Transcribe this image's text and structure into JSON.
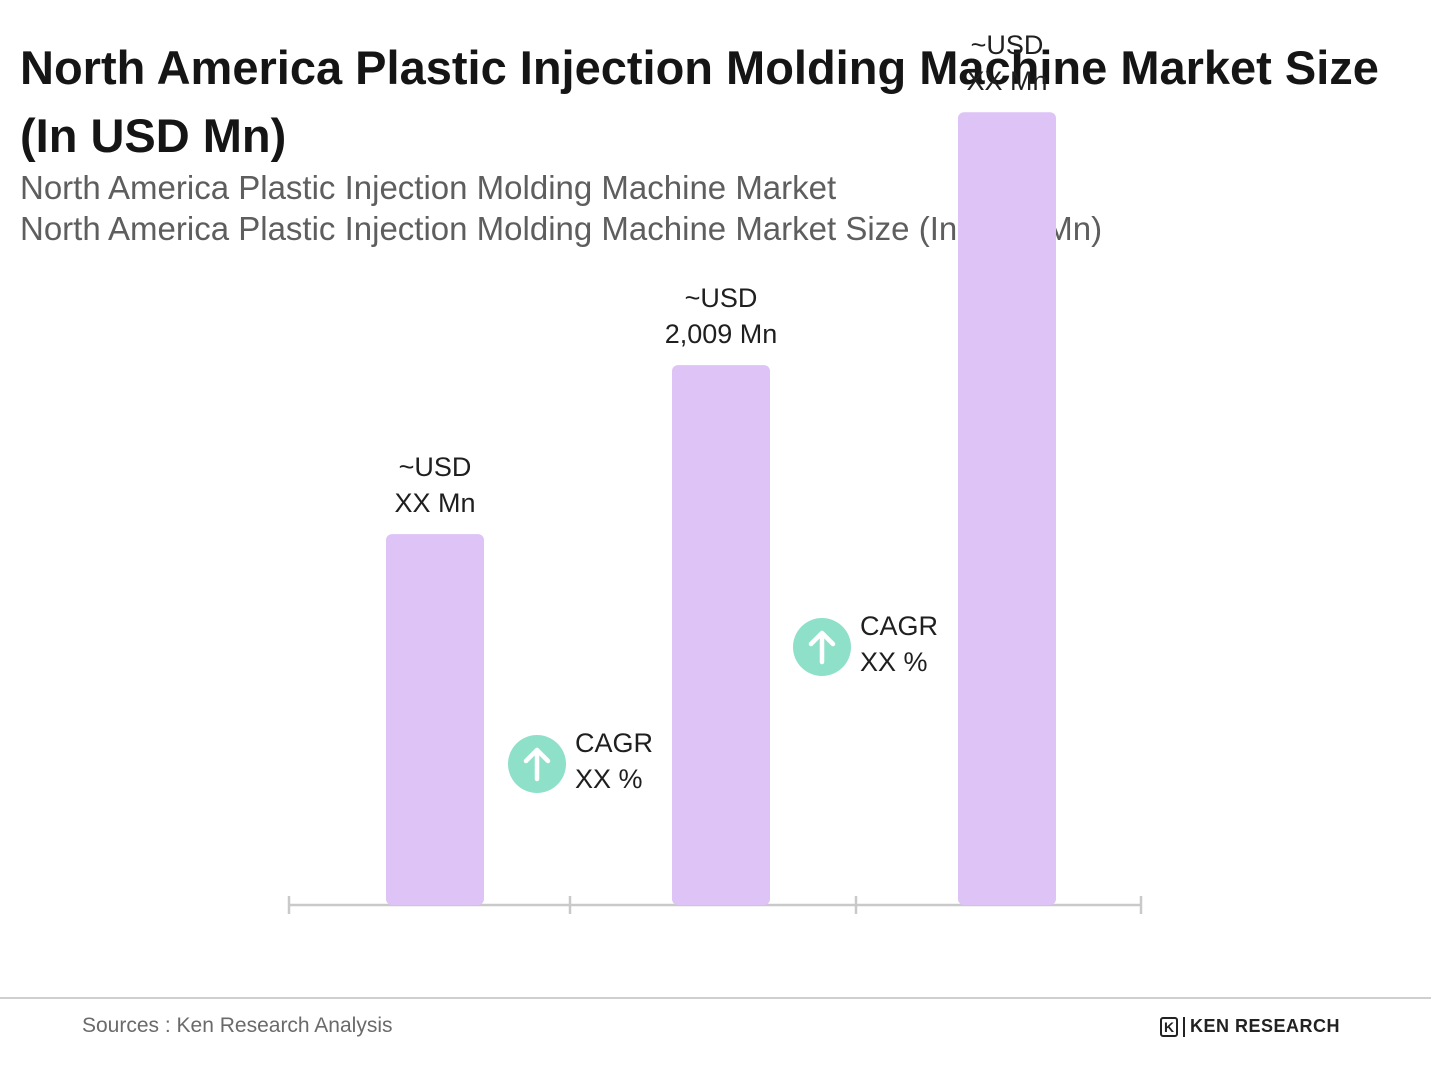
{
  "header": {
    "title": "North America Plastic Injection Molding Machine Market Size (In USD Mn)",
    "subtitle_1": "North America Plastic Injection Molding Machine Market",
    "subtitle_2": "North America Plastic Injection Molding Machine Market Size (In USD Mn)"
  },
  "chart_data": {
    "type": "bar",
    "title": "North America Plastic Injection Molding Machine Market Size (In USD Mn)",
    "xlabel": "",
    "ylabel": "",
    "categories": [
      "",
      "",
      ""
    ],
    "values": [
      1380,
      2009,
      2950
    ],
    "value_labels": [
      [
        "~USD",
        "XX Mn"
      ],
      [
        "~USD",
        "2,009 Mn"
      ],
      [
        "~USD",
        "XX Mn"
      ]
    ],
    "ylim": [
      0,
      3200
    ],
    "cagr": [
      {
        "label": "CAGR",
        "value": "XX %"
      },
      {
        "label": "CAGR",
        "value": "XX %"
      }
    ],
    "colors": {
      "bar": "#ddc3f6",
      "cagr_icon": "#8fe0c9",
      "axis": "#c9c9c9"
    },
    "grid": false
  },
  "footer": {
    "source": "Sources : Ken Research Analysis",
    "logo_mark": "K",
    "logo_text": "KEN RESEARCH"
  }
}
